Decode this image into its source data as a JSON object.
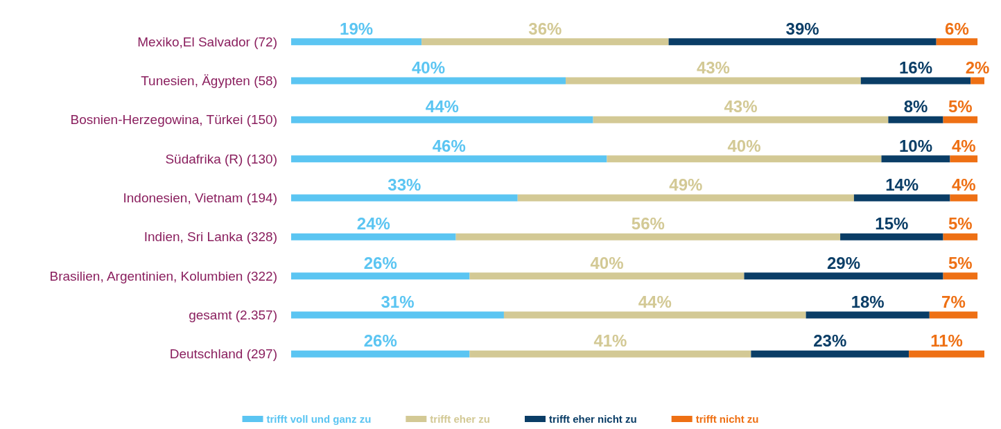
{
  "chart_data": {
    "type": "bar",
    "orientation": "horizontal",
    "stacked": true,
    "legend": "bottom",
    "categories": [
      "Mexiko,El Salvador (72)",
      "Tunesien, Ägypten (58)",
      "Bosnien-Herzegowina, Türkei (150)",
      "Südafrika (R) (130)",
      "Indonesien, Vietnam (194)",
      "Indien, Sri Lanka (328)",
      "Brasilien, Argentinien, Kolumbien (322)",
      "gesamt (2.357)",
      "Deutschland (297)"
    ],
    "series": [
      {
        "name": "trifft voll und ganz zu",
        "color": "#5bc5f2",
        "values": [
          19,
          40,
          44,
          46,
          33,
          24,
          26,
          31,
          26
        ],
        "value_labels": [
          "19%",
          "40%",
          "44%",
          "46%",
          "33%",
          "24%",
          "26%",
          "31%",
          "26%"
        ]
      },
      {
        "name": "trifft eher zu",
        "color": "#d3c995",
        "values": [
          36,
          43,
          43,
          40,
          49,
          56,
          40,
          44,
          41
        ],
        "value_labels": [
          "36%",
          "43%",
          "43%",
          "40%",
          "49%",
          "56%",
          "40%",
          "44%",
          "41%"
        ]
      },
      {
        "name": "trifft eher nicht zu",
        "color": "#0a3d66",
        "values": [
          39,
          16,
          8,
          10,
          14,
          15,
          29,
          18,
          23
        ],
        "value_labels": [
          "39%",
          "16%",
          "8%",
          "10%",
          "14%",
          "15%",
          "29%",
          "18%",
          "23%"
        ]
      },
      {
        "name": "trifft nicht zu",
        "color": "#ee7014",
        "values": [
          6,
          2,
          5,
          4,
          4,
          5,
          5,
          7,
          11
        ],
        "value_labels": [
          "6%",
          "2%",
          "5%",
          "4%",
          "4%",
          "5%",
          "5%",
          "7%",
          "11%"
        ]
      }
    ]
  }
}
